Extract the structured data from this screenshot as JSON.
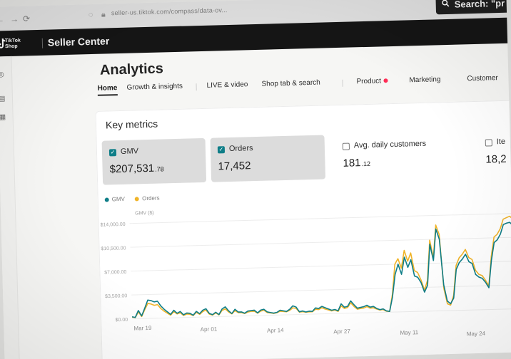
{
  "browser": {
    "url": "seller-us.tiktok.com/compass/data-ov...",
    "search_label": "Search: \"pr"
  },
  "header": {
    "brand_line_1": "TikTok",
    "brand_line_2": "Shop",
    "title": "Seller Center"
  },
  "page": {
    "title": "Analytics"
  },
  "tabs": [
    {
      "label": "Home",
      "active": true
    },
    {
      "label": "Growth & insights",
      "active": false
    },
    {
      "label": "LIVE & video",
      "active": false
    },
    {
      "label": "Shop tab & search",
      "active": false
    },
    {
      "label": "Product",
      "active": false,
      "dot": true
    },
    {
      "label": "Marketing",
      "active": false
    },
    {
      "label": "Customer",
      "active": false
    }
  ],
  "card": {
    "title": "Key metrics"
  },
  "metrics": [
    {
      "label": "GMV",
      "value_main": "$207,531",
      "value_small": ".78",
      "checked": true,
      "selected": true
    },
    {
      "label": "Orders",
      "value_main": "17,452",
      "value_small": "",
      "checked": true,
      "selected": true
    },
    {
      "label": "Avg. daily customers",
      "value_main": "181",
      "value_small": ".12",
      "checked": false,
      "selected": false
    },
    {
      "label": "Ite",
      "value_main": "18,2",
      "value_small": "",
      "checked": false,
      "selected": false
    }
  ],
  "legend": [
    {
      "name": "GMV",
      "color": "#0f7e88"
    },
    {
      "name": "Orders",
      "color": "#f0b429"
    }
  ],
  "chart_data": {
    "type": "line",
    "title": "",
    "ylabel": "GMV ($)",
    "yticks": [
      "$14,000.00",
      "$10,500.00",
      "$7,000.00",
      "$3,500.00",
      "$0.00"
    ],
    "ylim": [
      0,
      14000
    ],
    "xticks": [
      "Mar 19",
      "Apr 01",
      "Apr 14",
      "Apr 27",
      "May 11",
      "May 24"
    ],
    "series": [
      {
        "name": "GMV",
        "color": "#0f7e88",
        "values": [
          300,
          200,
          1200,
          400,
          1500,
          2700,
          2600,
          2400,
          2500,
          1800,
          1300,
          900,
          500,
          1100,
          650,
          900,
          400,
          650,
          600,
          300,
          850,
          500,
          1000,
          1200,
          500,
          300,
          650,
          300,
          1100,
          1400,
          800,
          400,
          1000,
          600,
          600,
          400,
          700,
          750,
          800,
          400,
          800,
          900,
          500,
          400,
          300,
          400,
          700,
          600,
          500,
          800,
          1300,
          1100,
          400,
          500,
          350,
          450,
          400,
          900,
          800,
          1100,
          900,
          700,
          500,
          600,
          400,
          1400,
          900,
          1000,
          1800,
          1200,
          700,
          800,
          900,
          1100,
          800,
          900,
          600,
          400,
          500,
          200,
          100,
          2200,
          5500,
          7000,
          5500,
          8000,
          6500,
          7600,
          5200,
          5000,
          4200,
          2800,
          3800,
          9800,
          7400,
          12000,
          10500,
          3800,
          1400,
          1000,
          1800,
          6000,
          7000,
          7500,
          8200,
          7100,
          6800,
          5200,
          4800,
          4600,
          4000,
          3200,
          7200,
          9800,
          10200,
          11000,
          12400,
          12600,
          12700,
          12200,
          11800,
          10600
        ]
      },
      {
        "name": "Orders",
        "color": "#f0b429",
        "values": [
          250,
          180,
          1000,
          300,
          1300,
          2200,
          2100,
          1900,
          2000,
          1400,
          1000,
          700,
          400,
          900,
          550,
          700,
          300,
          500,
          450,
          250,
          700,
          400,
          800,
          1000,
          400,
          250,
          550,
          250,
          900,
          1100,
          650,
          350,
          800,
          500,
          500,
          350,
          550,
          650,
          650,
          350,
          650,
          750,
          400,
          350,
          250,
          350,
          550,
          500,
          450,
          650,
          1000,
          900,
          350,
          400,
          300,
          350,
          350,
          700,
          650,
          900,
          700,
          550,
          400,
          500,
          300,
          1100,
          700,
          850,
          1500,
          950,
          550,
          650,
          700,
          900,
          650,
          700,
          500,
          350,
          400,
          150,
          100,
          2600,
          7000,
          7800,
          6400,
          9000,
          7400,
          8600,
          6000,
          5700,
          4600,
          3100,
          4500,
          10400,
          7800,
          12600,
          11200,
          3300,
          1000,
          800,
          2200,
          6600,
          7700,
          8200,
          8900,
          7700,
          7400,
          5800,
          5200,
          5000,
          4300,
          3500,
          7800,
          10600,
          11000,
          11800,
          13200,
          13400,
          13600,
          13200,
          12600,
          11200
        ]
      }
    ]
  }
}
